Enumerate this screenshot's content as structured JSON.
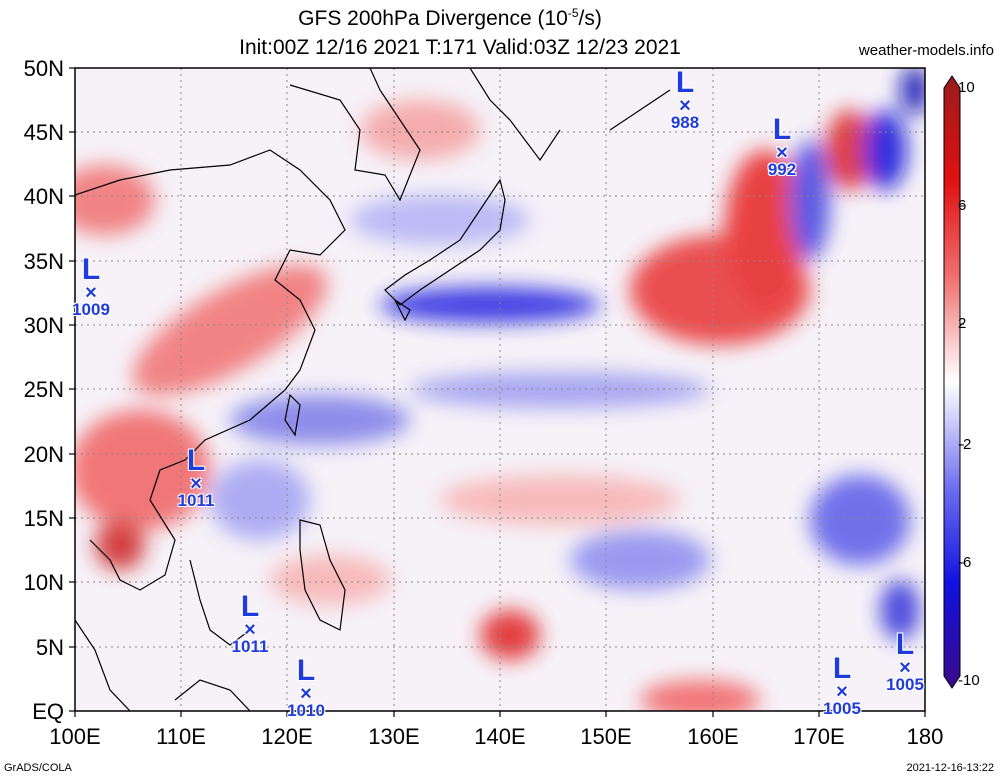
{
  "title": {
    "line1_main": "GFS 200hPa Divergence (10",
    "line1_exp": "-5",
    "line1_tail": "/s)",
    "line2": "Init:00Z 12/16 2021 T:171 Valid:03Z 12/23 2021"
  },
  "site_label": "weather-models.info",
  "footer": {
    "left": "GrADS/COLA",
    "right": "2021-12-16-13:22"
  },
  "axes": {
    "y_ticks": [
      "50N",
      "45N",
      "40N",
      "35N",
      "30N",
      "25N",
      "20N",
      "15N",
      "10N",
      "5N",
      "EQ"
    ],
    "x_ticks": [
      "100E",
      "110E",
      "120E",
      "130E",
      "140E",
      "150E",
      "160E",
      "170E",
      "180"
    ],
    "lon_range": [
      100,
      180
    ],
    "lat_range": [
      0,
      50
    ]
  },
  "colorbar": {
    "ticks": [
      "10",
      "6",
      "2",
      "-2",
      "-6",
      "-10"
    ],
    "colors_top_to_bottom": [
      "#9a1b1b",
      "#e01010",
      "#f07070",
      "#fbd8d8",
      "#ffffff",
      "#d8d8fb",
      "#7070f0",
      "#1010e0",
      "#3a0a8a"
    ]
  },
  "lows": [
    {
      "label": "L",
      "pressure": "988"
    },
    {
      "label": "L",
      "pressure": "992"
    },
    {
      "label": "L",
      "pressure": "1009"
    },
    {
      "label": "L",
      "pressure": "1011"
    },
    {
      "label": "L",
      "pressure": "1011"
    },
    {
      "label": "L",
      "pressure": "1010"
    },
    {
      "label": "L",
      "pressure": "1005"
    },
    {
      "label": "L",
      "pressure": "1005"
    }
  ],
  "low_symbol": "×"
}
